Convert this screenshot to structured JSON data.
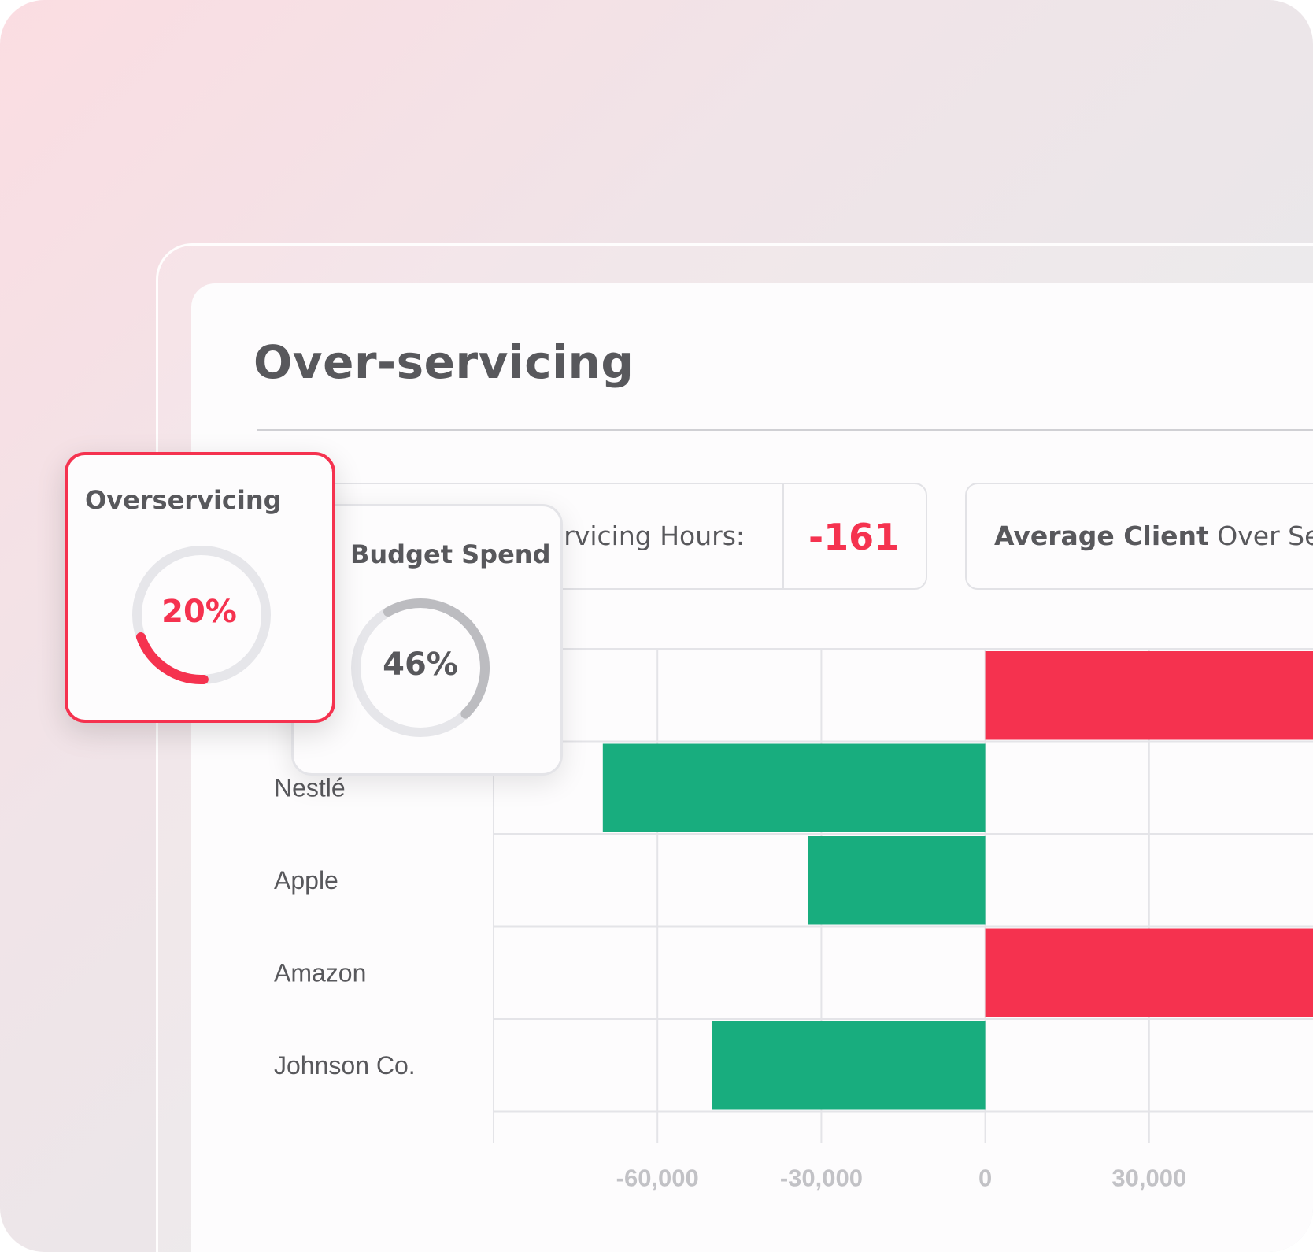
{
  "colors": {
    "accent": "#f5324f",
    "positive": "#18ad7e",
    "text": "#58585c",
    "gauge_track": "#e6e6ea",
    "budget_arc": "#bcbcc0"
  },
  "page": {
    "title": "Over-servicing"
  },
  "stats": {
    "hours_label": "Total Over-servicing Hours:",
    "hours_value": "-161",
    "average_label_bold": "Average Client",
    "average_label_rest": " Over Servicing"
  },
  "cards": {
    "overservicing": {
      "title": "Overservicing",
      "value": "20%",
      "progress": 0.2
    },
    "budget": {
      "title": "Budget Spend",
      "value": "46%",
      "progress": 0.46
    }
  },
  "chart_data": {
    "type": "bar",
    "orientation": "horizontal",
    "categories": [
      "",
      "Nestlé",
      "Apple",
      "Amazon",
      "Johnson Co."
    ],
    "values": [
      60000,
      -70000,
      -32500,
      60000,
      -50000
    ],
    "bar_colors": [
      "#f5324f",
      "#18ad7e",
      "#18ad7e",
      "#f5324f",
      "#18ad7e"
    ],
    "x_ticks": [
      -60000,
      -30000,
      0,
      30000
    ],
    "x_tick_labels": [
      "-60,000",
      "-30,000",
      "0",
      "30,000"
    ],
    "xlim": [
      -90000,
      60000
    ],
    "grid": true
  }
}
